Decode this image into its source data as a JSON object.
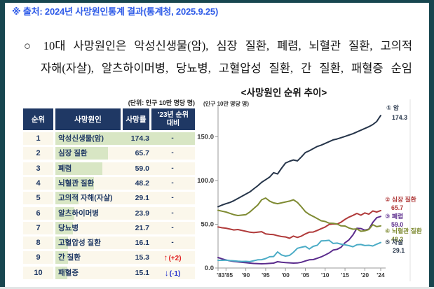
{
  "colors": {
    "border_teal": "#17464F",
    "accent_blue": "#2E5BE8",
    "table_header_navy": "#1F3864",
    "row_cream": "#FBF7EB",
    "bar_green": "#D8E6C4",
    "text_navy": "#1F3864",
    "up_red": "#E02020",
    "down_blue": "#2330CC"
  },
  "page": {
    "source_note": "※ 출처: 2024년 사망원인통계 결과(통계청, 2025.9.25)",
    "bullet_line1": "○ 10대 사망원인은 악성신생물(암), 심장 질환, 폐렴, 뇌혈관 질환, 고의적",
    "bullet_line2": "자해(자살), 알츠하이머병, 당뇨병, 고혈압성 질환, 간 질환, 패혈증 순임"
  },
  "table": {
    "unit_note": "(단위: 인구 10만 명당 명)",
    "headers": {
      "rank": "순위",
      "cause": "사망원인",
      "rate": "사망률",
      "delta_line1": "'23년 순위",
      "delta_line2": "대비"
    },
    "rows": [
      {
        "rank": "1",
        "cause": "악성신생물(암)",
        "rate": "174.3",
        "delta": "-",
        "delta_dir": "none"
      },
      {
        "rank": "2",
        "cause": "심장 질환",
        "rate": "65.7",
        "delta": "-",
        "delta_dir": "none"
      },
      {
        "rank": "3",
        "cause": "폐렴",
        "rate": "59.0",
        "delta": "-",
        "delta_dir": "none"
      },
      {
        "rank": "4",
        "cause": "뇌혈관 질환",
        "rate": "48.2",
        "delta": "-",
        "delta_dir": "none"
      },
      {
        "rank": "5",
        "cause": "고의적 자해(자살)",
        "rate": "29.1",
        "delta": "-",
        "delta_dir": "none"
      },
      {
        "rank": "6",
        "cause": "알츠하이머병",
        "rate": "23.9",
        "delta": "-",
        "delta_dir": "none"
      },
      {
        "rank": "7",
        "cause": "당뇨병",
        "rate": "21.7",
        "delta": "-",
        "delta_dir": "none"
      },
      {
        "rank": "8",
        "cause": "고혈압성 질환",
        "rate": "16.1",
        "delta": "-",
        "delta_dir": "none"
      },
      {
        "rank": "9",
        "cause": "간 질환",
        "rate": "15.3",
        "delta": "(+2)",
        "delta_dir": "up"
      },
      {
        "rank": "10",
        "cause": "패혈증",
        "rate": "15.1",
        "delta": "(-1)",
        "delta_dir": "down"
      }
    ]
  },
  "chart_data": {
    "type": "line",
    "title": "<사망원인 순위 추이>",
    "unit_label": "(인구 10만 명당 명)",
    "xlim": [
      1983,
      2024
    ],
    "ylim": [
      0,
      185
    ],
    "grid": false,
    "legend_position": "right-of-line-ends",
    "x_start": 1983,
    "years": [
      1983,
      1984,
      1985,
      1986,
      1987,
      1988,
      1989,
      1990,
      1991,
      1992,
      1993,
      1994,
      1995,
      1996,
      1997,
      1998,
      1999,
      2000,
      2001,
      2002,
      2003,
      2004,
      2005,
      2006,
      2007,
      2008,
      2009,
      2010,
      2011,
      2012,
      2013,
      2014,
      2015,
      2016,
      2017,
      2018,
      2019,
      2020,
      2021,
      2022,
      2023,
      2024
    ],
    "y_ticks": [
      0,
      50,
      100,
      150
    ],
    "y_tick_labels": [
      "0.0",
      "50.0",
      "100.0",
      "150.0"
    ],
    "x_tick_marks": [
      1983,
      1985,
      1990,
      1995,
      2000,
      2005,
      2010,
      2015,
      2020,
      2024
    ],
    "x_tick_labels": [
      {
        "x": 1984.7,
        "label": "'83'85"
      },
      {
        "x": 1990,
        "label": "'90"
      },
      {
        "x": 1995,
        "label": "'95"
      },
      {
        "x": 2000,
        "label": "'00"
      },
      {
        "x": 2005,
        "label": "'05"
      },
      {
        "x": 2010,
        "label": "'10"
      },
      {
        "x": 2015,
        "label": "'15"
      },
      {
        "x": 2020,
        "label": "'20"
      },
      {
        "x": 2024,
        "label": "'24"
      }
    ],
    "series": [
      {
        "name": "암",
        "label": "① 암",
        "end_value_label": "174.3",
        "color": "#26354A",
        "values": [
          70,
          72,
          73.5,
          75,
          77,
          79.5,
          82,
          84.5,
          87,
          90.5,
          94,
          98,
          101,
          104,
          109,
          107.5,
          114,
          120,
          122,
          123.5,
          122.5,
          127,
          132,
          134,
          136.5,
          139,
          140.5,
          142.5,
          144.5,
          146.5,
          147.5,
          149,
          150.5,
          152,
          153.5,
          155.5,
          157.5,
          159.5,
          161.5,
          164,
          167.5,
          174.3
        ]
      },
      {
        "name": "심장 질환",
        "label": "② 심장 질환",
        "end_value_label": "65.7",
        "color": "#B03A3A",
        "values": [
          47,
          46,
          45.5,
          44.5,
          43.5,
          44,
          43,
          42,
          41,
          40.5,
          41,
          41.5,
          39,
          38.5,
          38.2,
          37,
          36,
          35.5,
          34,
          36.5,
          35,
          36.5,
          39,
          41,
          41.1,
          43,
          45,
          46.9,
          49.8,
          50.4,
          50.2,
          52.4,
          55.6,
          58.2,
          60.2,
          62.4,
          60.4,
          63,
          61.5,
          65.2,
          64,
          65.7
        ]
      },
      {
        "name": "폐렴",
        "label": "③ 폐렴",
        "end_value_label": "59.0",
        "color": "#5B2C8D",
        "values": [
          12,
          10.5,
          9.2,
          8.2,
          7.5,
          7,
          6.5,
          6.1,
          5.6,
          5.2,
          5,
          4.8,
          5,
          5.3,
          5.6,
          7.2,
          6.6,
          6.2,
          5.9,
          5.6,
          5.8,
          6.6,
          8.1,
          9.4,
          9.6,
          11.1,
          12.7,
          14.9,
          17.2,
          20.5,
          21.4,
          23.7,
          28.9,
          32.2,
          37.8,
          45.4,
          45.1,
          43.3,
          44.4,
          52.1,
          57.5,
          59.0
        ]
      },
      {
        "name": "뇌혈관 질환",
        "label": "④ 뇌혈관 질환",
        "end_value_label": "48.2",
        "color": "#7F8B33",
        "values": [
          66,
          65,
          64,
          62.5,
          61,
          60,
          60.5,
          61,
          64,
          68,
          72,
          78,
          80,
          76.5,
          74.5,
          73.5,
          74.5,
          75.5,
          76.5,
          78,
          75,
          70,
          64.5,
          61.3,
          59,
          56.5,
          54,
          53.2,
          51.3,
          51.1,
          50.3,
          48.2,
          48,
          45.8,
          44.4,
          44.7,
          42,
          42.6,
          44,
          49.5,
          47.3,
          48.2
        ]
      },
      {
        "name": "자살",
        "label": "⑤ 자살",
        "end_value_label": "29.1",
        "color": "#4BACC6",
        "label_color": "#26354A",
        "values": [
          8.7,
          8.8,
          9.0,
          8.5,
          8.2,
          7.8,
          7.5,
          7.6,
          7.3,
          8.3,
          9.4,
          9.5,
          10.8,
          12.9,
          13.1,
          18.4,
          15.0,
          13.6,
          14.4,
          17.9,
          22.6,
          23.7,
          24.7,
          21.8,
          24.8,
          26.0,
          31.0,
          31.2,
          31.7,
          28.1,
          28.5,
          27.3,
          26.5,
          25.6,
          24.3,
          26.6,
          26.9,
          25.7,
          26.0,
          25.2,
          27.3,
          29.1
        ]
      }
    ]
  }
}
